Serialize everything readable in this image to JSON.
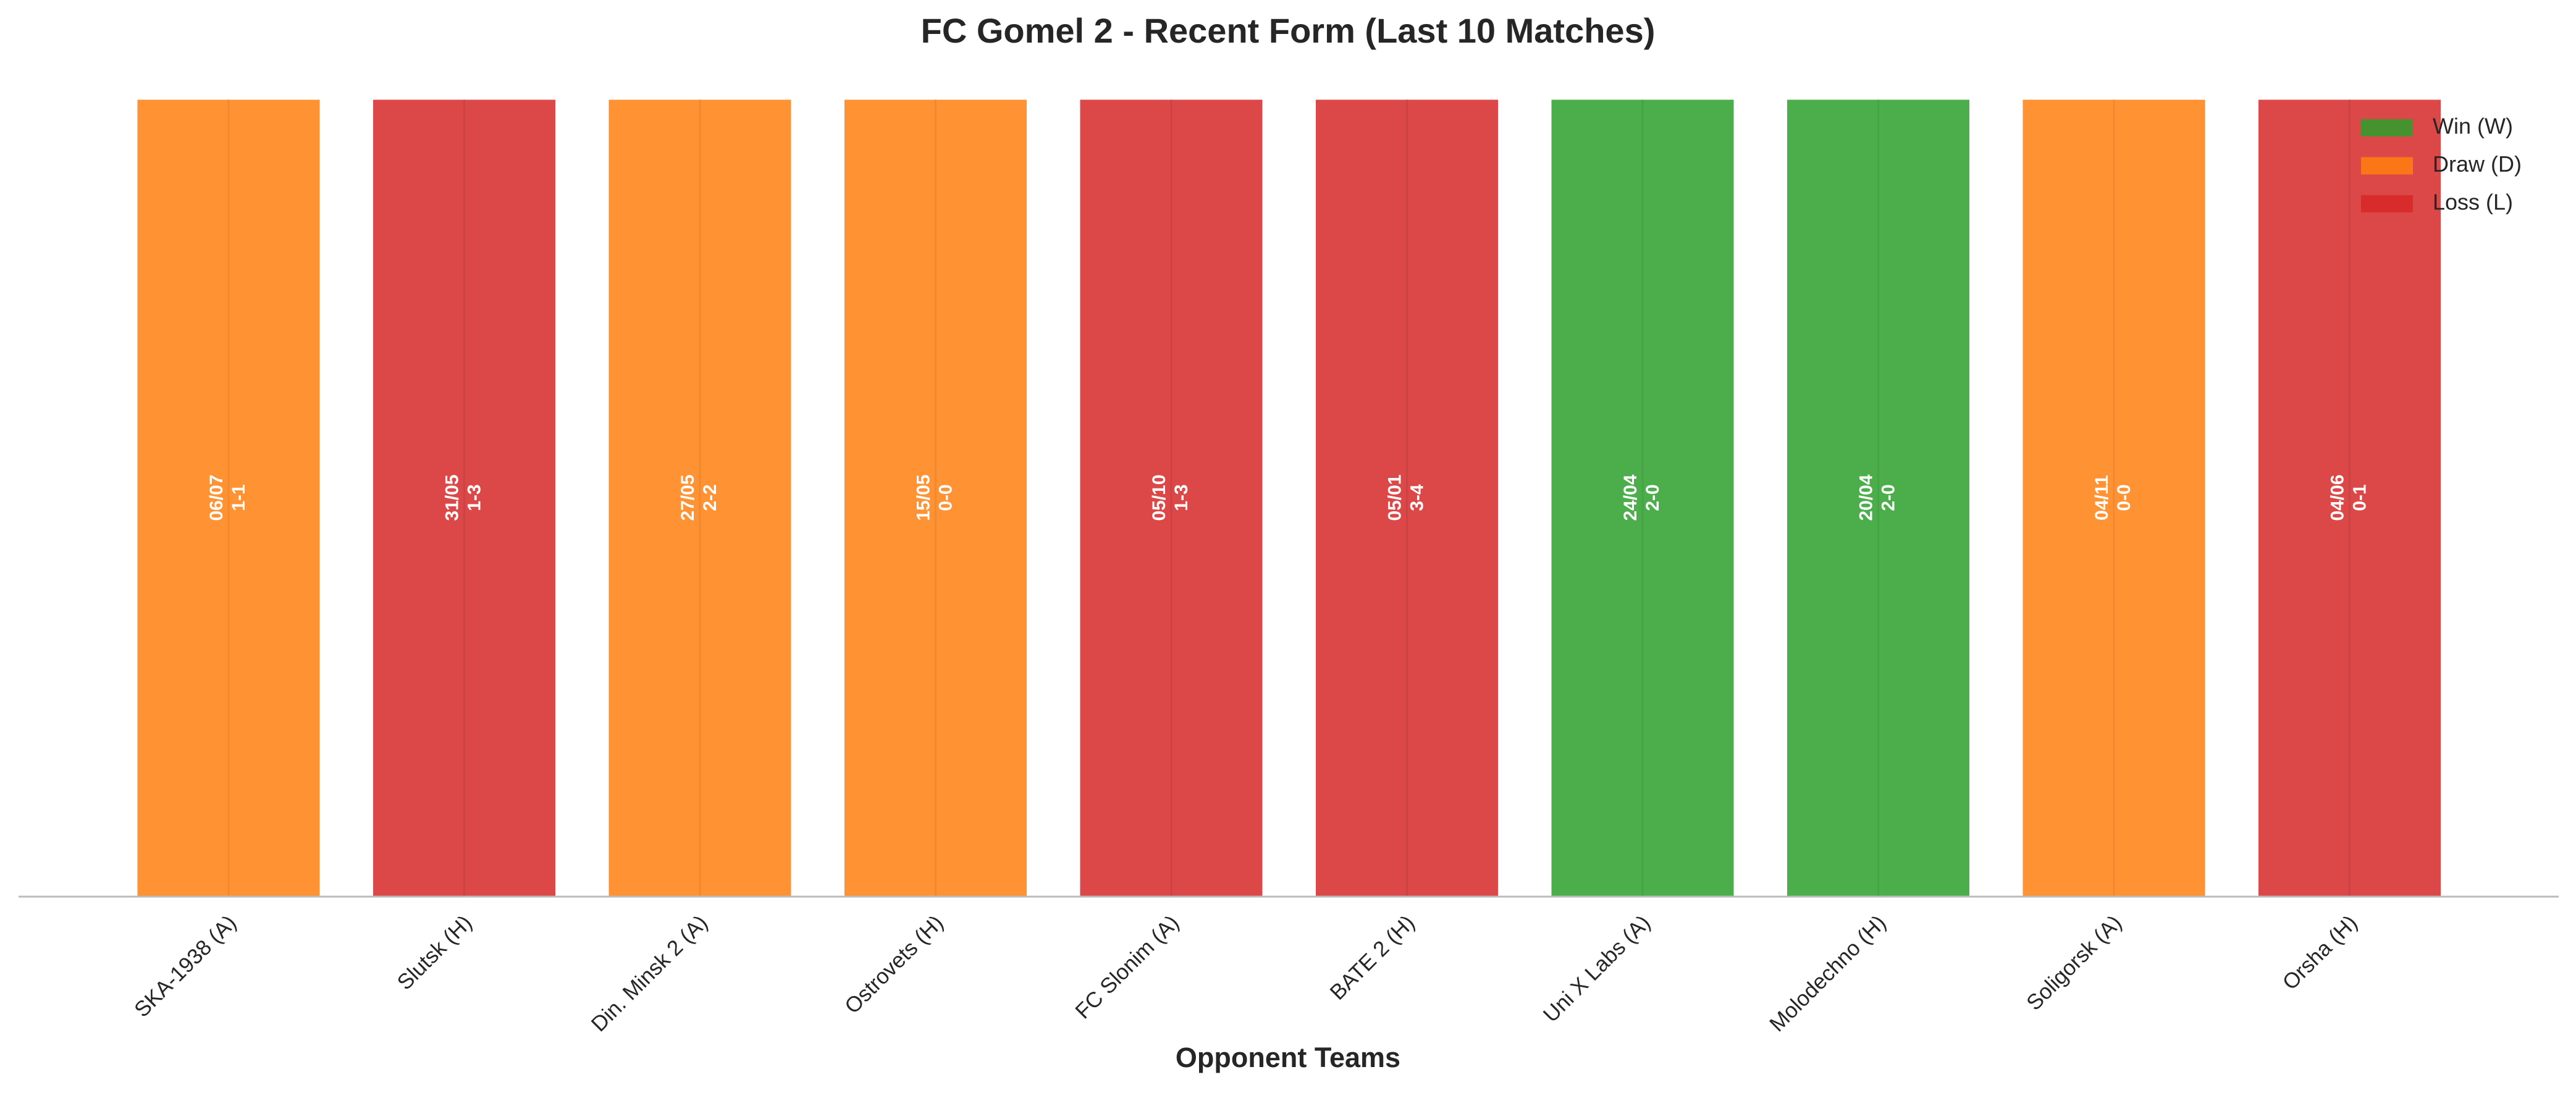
{
  "chart_data": {
    "type": "bar",
    "title": "FC Gomel 2 - Recent Form (Last 10 Matches)",
    "x_label": "Opponent Teams",
    "categories": [
      "SKA-1938 (A)",
      "Slutsk (H)",
      "Din. Minsk 2 (A)",
      "Ostrovets (H)",
      "FC Slonim (A)",
      "BATE 2 (H)",
      "Uni X Labs (A)",
      "Molodechno (H)",
      "Soligorsk (A)",
      "Orsha (H)"
    ],
    "values": [
      1,
      1,
      1,
      1,
      1,
      1,
      1,
      1,
      1,
      1
    ],
    "ylim": [
      0,
      1
    ],
    "dates": [
      "06/07",
      "31/05",
      "27/05",
      "15/05",
      "05/10",
      "05/01",
      "24/04",
      "20/04",
      "04/11",
      "04/06"
    ],
    "scores": [
      "1-1",
      "1-3",
      "2-2",
      "0-0",
      "1-3",
      "3-4",
      "2-0",
      "2-0",
      "0-0",
      "0-1"
    ],
    "colors": [
      "#ff7f0e",
      "#d62728",
      "#ff7f0e",
      "#ff7f0e",
      "#d62728",
      "#d62728",
      "#2ca02c",
      "#2ca02c",
      "#ff7f0e",
      "#d62728"
    ],
    "legend": [
      {
        "name": "Win (W)",
        "color": "#2ca02c"
      },
      {
        "name": "Draw (D)",
        "color": "#ff7f0e"
      },
      {
        "name": "Loss (L)",
        "color": "#d62728"
      }
    ],
    "legend_position": "upper right"
  }
}
